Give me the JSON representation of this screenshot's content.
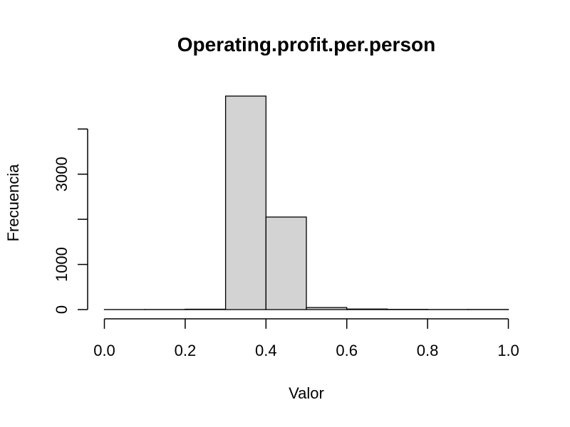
{
  "chart_data": {
    "type": "bar",
    "title": "Operating.profit.per.person",
    "xlabel": "Valor",
    "ylabel": "Frecuencia",
    "bin_edges": [
      0.0,
      0.1,
      0.2,
      0.3,
      0.4,
      0.5,
      0.6,
      0.7,
      0.8,
      0.9,
      1.0
    ],
    "values": [
      1,
      2,
      8,
      4730,
      2050,
      45,
      12,
      5,
      2,
      3
    ],
    "x_ticks": [
      0.0,
      0.2,
      0.4,
      0.6,
      0.8,
      1.0
    ],
    "x_tick_labels": [
      "0.0",
      "0.2",
      "0.4",
      "0.6",
      "0.8",
      "1.0"
    ],
    "y_ticks": [
      0,
      1000,
      2000,
      3000,
      4000
    ],
    "y_tick_labels": [
      "0",
      "1000",
      "",
      "3000",
      ""
    ],
    "xlim": [
      0,
      1
    ],
    "ylim": [
      0,
      4730
    ],
    "grid": false,
    "bar_fill": "#d3d3d3"
  }
}
